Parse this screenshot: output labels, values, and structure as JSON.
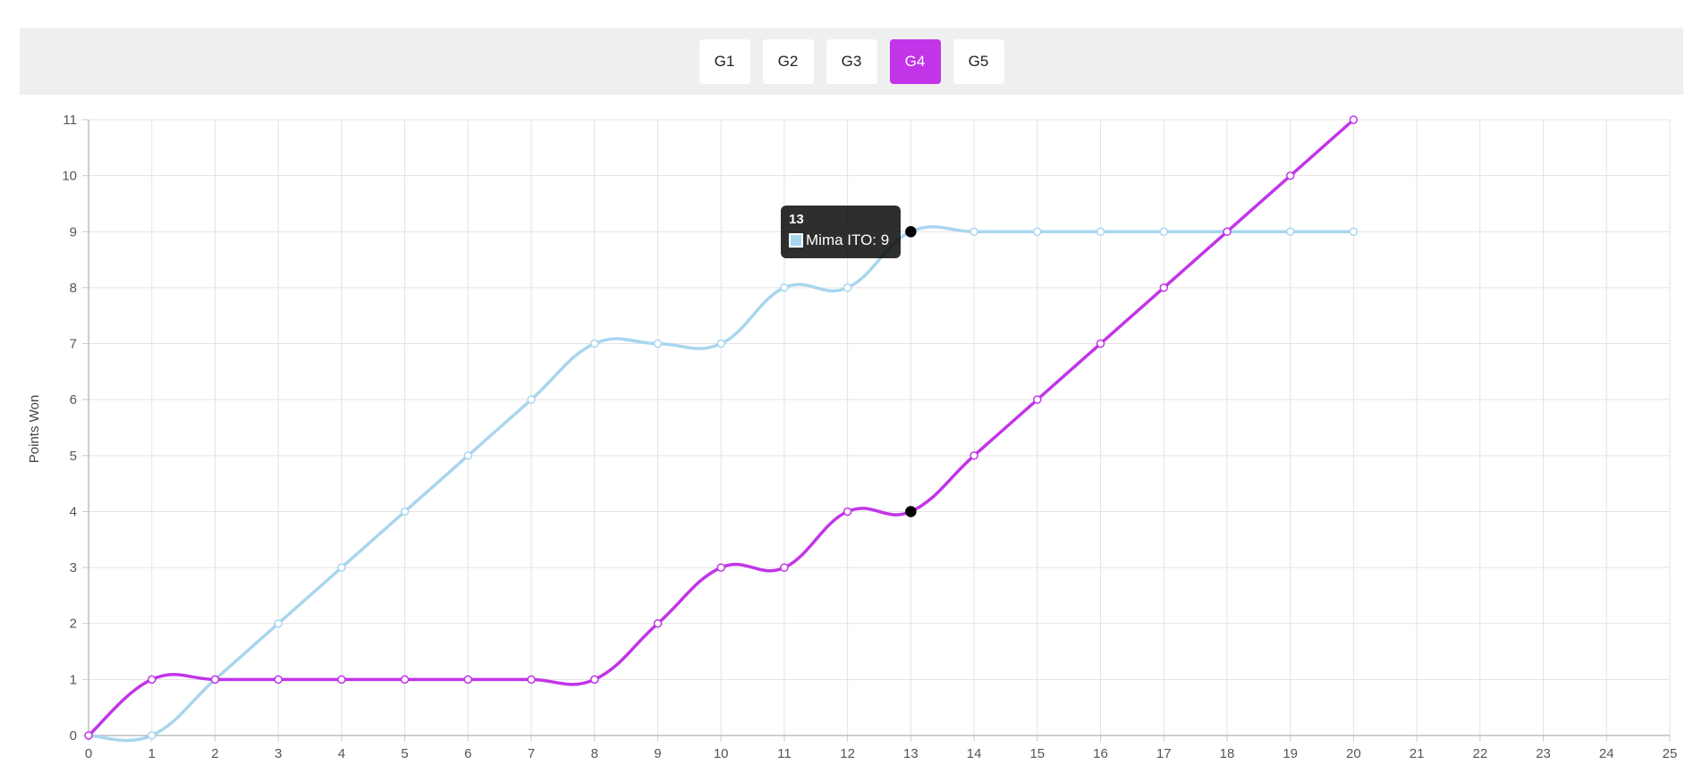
{
  "tabs": [
    {
      "label": "G1",
      "active": false
    },
    {
      "label": "G2",
      "active": false
    },
    {
      "label": "G3",
      "active": false
    },
    {
      "label": "G4",
      "active": true
    },
    {
      "label": "G5",
      "active": false
    }
  ],
  "colors": {
    "accent": "#c234e8",
    "series_light": "#a8d6ee",
    "grid": "#e3e3e3",
    "tabbar_bg": "#efefef"
  },
  "tooltip": {
    "title": "13",
    "label": "Mima ITO: 9"
  },
  "chart_data": {
    "type": "line",
    "ylabel": "Points Won",
    "xlabel": "",
    "xlim": [
      0,
      25
    ],
    "ylim": [
      0,
      11
    ],
    "grid": true,
    "x": [
      0,
      1,
      2,
      3,
      4,
      5,
      6,
      7,
      8,
      9,
      10,
      11,
      12,
      13,
      14,
      15,
      16,
      17,
      18,
      19,
      20
    ],
    "series": [
      {
        "name": "Mima ITO",
        "color": "#a8d6ee",
        "values": [
          0,
          0,
          1,
          2,
          3,
          4,
          5,
          6,
          7,
          7,
          7,
          8,
          8,
          9,
          9,
          9,
          9,
          9,
          9,
          9,
          9
        ]
      },
      {
        "name": "",
        "color": "#c234e8",
        "values": [
          0,
          1,
          1,
          1,
          1,
          1,
          1,
          1,
          1,
          2,
          3,
          3,
          4,
          4,
          5,
          6,
          7,
          8,
          9,
          10,
          11
        ]
      }
    ],
    "highlight_x": 13
  }
}
